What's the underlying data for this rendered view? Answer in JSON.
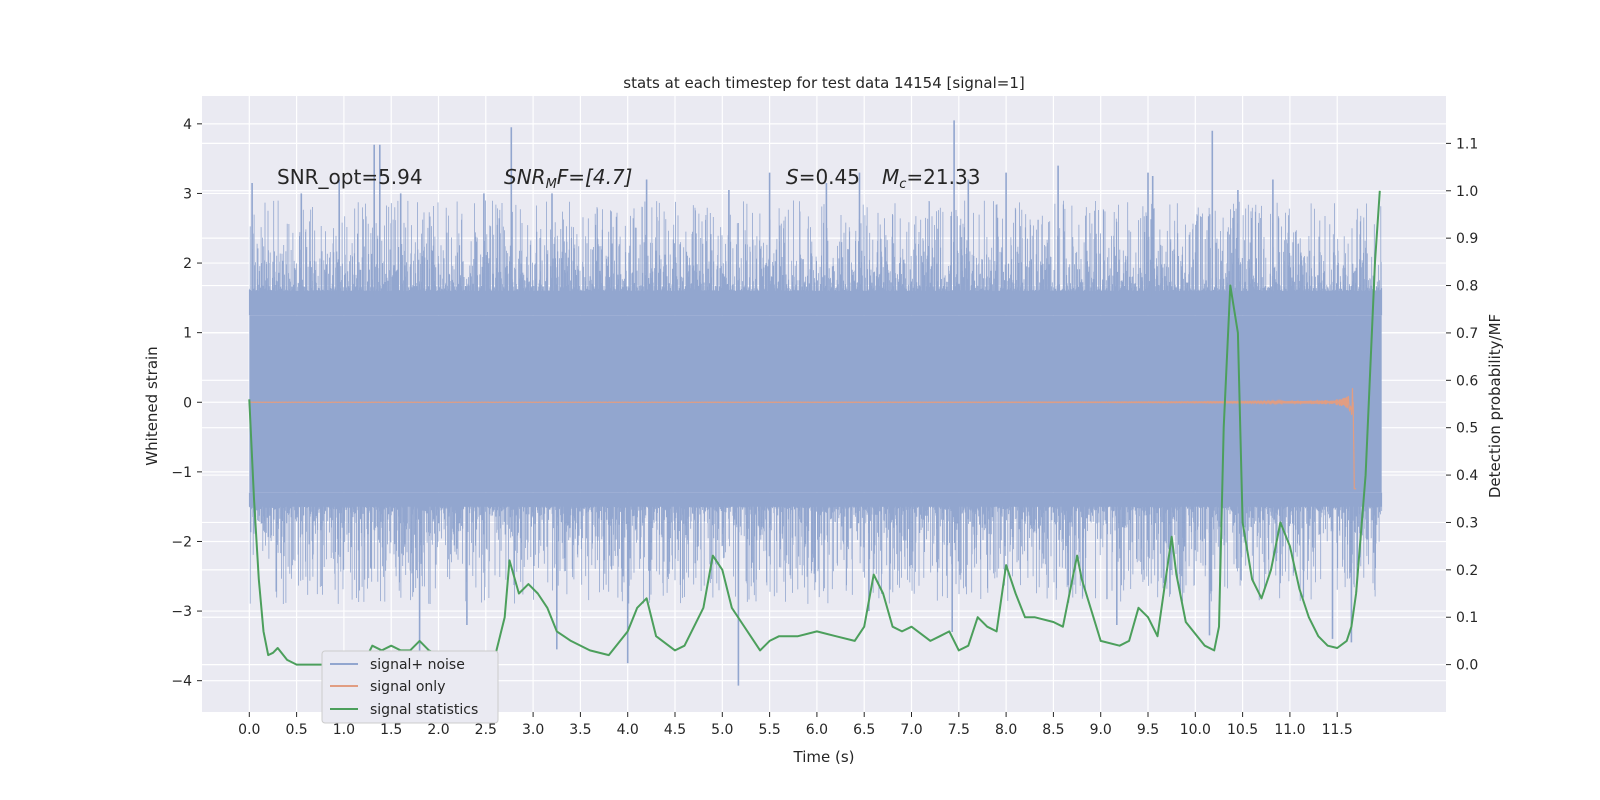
{
  "chart_data": {
    "type": "line",
    "title": "stats at each timestep for test data 14154 [signal=1]",
    "xlabel": "Time (s)",
    "ylabel": "Whitened strain",
    "ylabel_right": "Detection probability/MF",
    "xlim": [
      -0.5,
      12.65
    ],
    "ylim": [
      -4.45,
      4.4
    ],
    "ylim_right": [
      -0.1,
      1.2
    ],
    "x_ticks": [
      0.0,
      0.5,
      1.0,
      1.5,
      2.0,
      2.5,
      3.0,
      3.5,
      4.0,
      4.5,
      5.0,
      5.5,
      6.0,
      6.5,
      7.0,
      7.5,
      8.0,
      8.5,
      9.0,
      9.5,
      10.0,
      10.5,
      11.0,
      11.5
    ],
    "x_tick_labels": [
      "0.0",
      "0.5",
      "1.0",
      "1.5",
      "2.0",
      "2.5",
      "3.0",
      "3.5",
      "4.0",
      "4.5",
      "5.0",
      "5.5",
      "6.0",
      "6.5",
      "7.0",
      "7.5",
      "8.0",
      "8.5",
      "9.0",
      "9.5",
      "10.0",
      "10.5",
      "11.0",
      "11.5"
    ],
    "y_ticks": [
      -4,
      -3,
      -2,
      -1,
      0,
      1,
      2,
      3,
      4
    ],
    "y_tick_labels": [
      "−4",
      "−3",
      "−2",
      "−1",
      "0",
      "1",
      "2",
      "3",
      "4"
    ],
    "y_ticks_right": [
      0.0,
      0.1,
      0.2,
      0.3,
      0.4,
      0.5,
      0.6,
      0.7,
      0.8,
      0.9,
      1.0,
      1.1
    ],
    "y_tick_labels_right": [
      "0.0",
      "0.1",
      "0.2",
      "0.3",
      "0.4",
      "0.5",
      "0.6",
      "0.7",
      "0.8",
      "0.9",
      "1.0",
      "1.1"
    ],
    "grid": true,
    "legend_position": "lower-left",
    "annotations": [
      {
        "id": "snr-opt",
        "text": "SNR_opt=5.94",
        "x": 0.2,
        "y": 3.2
      },
      {
        "id": "snr-mf",
        "text_main": "SNR",
        "text_sub": "M",
        "text_rest": "F=[4.7]",
        "x": 2.6,
        "y": 3.2
      },
      {
        "id": "s-val",
        "text_main": "S",
        "text_rest": "=0.45",
        "x": 5.6,
        "y": 3.2
      },
      {
        "id": "mc-val",
        "text_main": "M",
        "text_sub": "c",
        "text_rest": "=21.33",
        "x": 6.6,
        "y": 3.2
      }
    ],
    "series": [
      {
        "name": "signal+ noise",
        "axis": "left",
        "color": "#92a6cf",
        "x_range": [
          0.0,
          11.97
        ],
        "envelope_inner": [
          -1.3,
          1.25
        ],
        "peak_highs": [
          [
            0.03,
            3.15
          ],
          [
            0.55,
            2.6
          ],
          [
            0.55,
            3.0
          ],
          [
            0.95,
            3.2
          ],
          [
            1.32,
            3.7
          ],
          [
            1.38,
            3.7
          ],
          [
            1.6,
            3.0
          ],
          [
            2.48,
            3.0
          ],
          [
            2.77,
            3.95
          ],
          [
            3.2,
            3.0
          ],
          [
            4.2,
            3.2
          ],
          [
            5.07,
            3.05
          ],
          [
            5.5,
            3.3
          ],
          [
            6.1,
            3.15
          ],
          [
            6.45,
            3.3
          ],
          [
            7.45,
            4.05
          ],
          [
            7.6,
            3.2
          ],
          [
            8.0,
            3.3
          ],
          [
            8.55,
            3.4
          ],
          [
            9.5,
            3.3
          ],
          [
            9.55,
            3.25
          ],
          [
            10.18,
            3.9
          ],
          [
            10.45,
            3.05
          ],
          [
            10.82,
            3.2
          ]
        ],
        "peak_lows": [
          [
            1.8,
            -3.6
          ],
          [
            2.3,
            -3.2
          ],
          [
            3.25,
            -3.55
          ],
          [
            4.0,
            -3.75
          ],
          [
            5.17,
            -4.07
          ],
          [
            6.55,
            -3.0
          ],
          [
            7.43,
            -3.3
          ],
          [
            9.17,
            -3.2
          ],
          [
            10.15,
            -3.35
          ],
          [
            11.45,
            -3.4
          ],
          [
            11.65,
            -3.45
          ]
        ]
      },
      {
        "name": "signal only",
        "axis": "left",
        "color": "#e19d82",
        "x_range": [
          0.0,
          11.7
        ],
        "chirp_peak_time": 11.68,
        "chirp_max_amplitude": 1.35
      },
      {
        "name": "signal statistics",
        "axis": "right",
        "color": "#4c9f5c",
        "x": [
          0.0,
          0.05,
          0.1,
          0.15,
          0.2,
          0.25,
          0.3,
          0.4,
          0.5,
          0.6,
          0.8,
          1.0,
          1.2,
          1.3,
          1.4,
          1.5,
          1.6,
          1.7,
          1.8,
          1.9,
          2.0,
          2.1,
          2.2,
          2.4,
          2.6,
          2.7,
          2.75,
          2.85,
          2.95,
          3.05,
          3.15,
          3.25,
          3.4,
          3.6,
          3.8,
          4.0,
          4.1,
          4.2,
          4.3,
          4.5,
          4.6,
          4.8,
          4.9,
          5.0,
          5.1,
          5.2,
          5.4,
          5.5,
          5.6,
          5.8,
          6.0,
          6.2,
          6.4,
          6.5,
          6.6,
          6.7,
          6.8,
          6.9,
          7.0,
          7.2,
          7.3,
          7.4,
          7.5,
          7.6,
          7.7,
          7.8,
          7.9,
          8.0,
          8.1,
          8.2,
          8.3,
          8.5,
          8.6,
          8.75,
          8.8,
          9.0,
          9.2,
          9.3,
          9.4,
          9.5,
          9.6,
          9.75,
          9.8,
          9.9,
          10.1,
          10.2,
          10.25,
          10.3,
          10.37,
          10.45,
          10.5,
          10.6,
          10.7,
          10.8,
          10.9,
          11.0,
          11.1,
          11.2,
          11.3,
          11.4,
          11.5,
          11.6,
          11.65,
          11.7,
          11.8,
          11.9,
          11.95
        ],
        "values": [
          0.56,
          0.35,
          0.18,
          0.07,
          0.02,
          0.025,
          0.035,
          0.01,
          0.0,
          0.0,
          0.0,
          0.0,
          0.0,
          0.04,
          0.03,
          0.04,
          0.03,
          0.03,
          0.05,
          0.03,
          0.02,
          0.02,
          0.02,
          0.015,
          0.02,
          0.1,
          0.22,
          0.15,
          0.17,
          0.15,
          0.12,
          0.07,
          0.05,
          0.03,
          0.02,
          0.07,
          0.12,
          0.14,
          0.06,
          0.03,
          0.04,
          0.12,
          0.23,
          0.2,
          0.12,
          0.09,
          0.03,
          0.05,
          0.06,
          0.06,
          0.07,
          0.06,
          0.05,
          0.08,
          0.19,
          0.15,
          0.08,
          0.07,
          0.08,
          0.05,
          0.06,
          0.07,
          0.03,
          0.04,
          0.1,
          0.08,
          0.07,
          0.21,
          0.15,
          0.1,
          0.1,
          0.09,
          0.08,
          0.23,
          0.18,
          0.05,
          0.04,
          0.05,
          0.12,
          0.1,
          0.06,
          0.27,
          0.19,
          0.09,
          0.04,
          0.03,
          0.08,
          0.5,
          0.8,
          0.7,
          0.3,
          0.18,
          0.14,
          0.2,
          0.3,
          0.25,
          0.16,
          0.1,
          0.06,
          0.04,
          0.035,
          0.05,
          0.08,
          0.15,
          0.4,
          0.85,
          1.0
        ]
      }
    ]
  }
}
